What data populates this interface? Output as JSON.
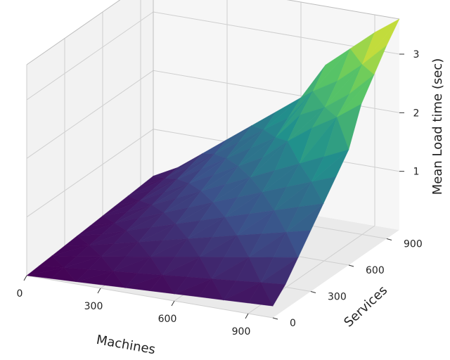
{
  "chart_data": {
    "type": "surface",
    "title": "",
    "xlabel": "Machines",
    "ylabel": "Services",
    "zlabel": "Mean Load time (sec)",
    "x_ticks": [
      0,
      300,
      600,
      900
    ],
    "y_ticks": [
      0,
      300,
      600,
      900
    ],
    "z_ticks": [
      1,
      2,
      3
    ],
    "xlim": [
      0,
      1000
    ],
    "ylim": [
      0,
      1000
    ],
    "zlim": [
      0,
      3.6
    ],
    "colormap": [
      "#440154",
      "#3b528b",
      "#21918c",
      "#5ec962",
      "#fde725"
    ],
    "grid": true,
    "x": [
      0,
      100,
      200,
      300,
      400,
      500,
      600,
      700,
      800,
      900,
      1000
    ],
    "y": [
      0,
      100,
      200,
      300,
      400,
      500,
      600,
      700,
      800,
      900,
      1000
    ],
    "z": [
      [
        0.0,
        0.02,
        0.04,
        0.06,
        0.08,
        0.1,
        0.12,
        0.14,
        0.16,
        0.18,
        0.2
      ],
      [
        0.02,
        0.06,
        0.1,
        0.14,
        0.18,
        0.22,
        0.26,
        0.3,
        0.34,
        0.38,
        0.42
      ],
      [
        0.04,
        0.1,
        0.17,
        0.24,
        0.31,
        0.38,
        0.45,
        0.52,
        0.59,
        0.66,
        0.73
      ],
      [
        0.06,
        0.14,
        0.24,
        0.34,
        0.44,
        0.54,
        0.64,
        0.74,
        0.84,
        0.94,
        1.04
      ],
      [
        0.08,
        0.18,
        0.31,
        0.44,
        0.57,
        0.7,
        0.83,
        0.96,
        1.09,
        1.22,
        1.35
      ],
      [
        0.1,
        0.22,
        0.38,
        0.54,
        0.7,
        0.86,
        1.02,
        1.18,
        1.34,
        1.5,
        1.66
      ],
      [
        0.12,
        0.26,
        0.45,
        0.64,
        0.83,
        1.02,
        1.21,
        1.4,
        1.59,
        1.78,
        1.97
      ],
      [
        0.14,
        0.3,
        0.52,
        0.74,
        0.96,
        1.18,
        1.4,
        1.75,
        2.05,
        2.3,
        2.6
      ],
      [
        0.16,
        0.34,
        0.59,
        0.84,
        1.09,
        1.34,
        1.59,
        2.05,
        2.25,
        2.55,
        2.95
      ],
      [
        0.18,
        0.38,
        0.66,
        0.94,
        1.22,
        1.5,
        1.78,
        2.3,
        2.55,
        2.9,
        3.3
      ],
      [
        0.2,
        0.42,
        0.73,
        1.04,
        1.35,
        1.66,
        1.97,
        2.6,
        2.95,
        3.3,
        3.6
      ]
    ]
  }
}
